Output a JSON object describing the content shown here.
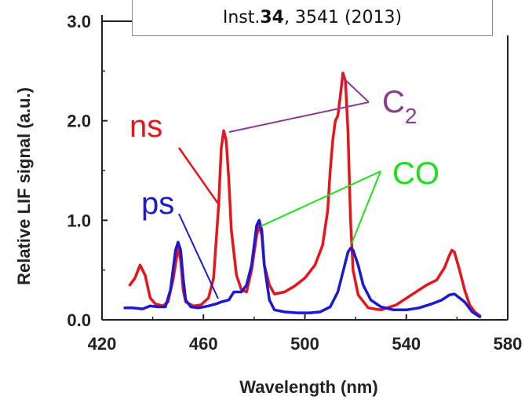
{
  "citation": {
    "prefix": "Inst. ",
    "volume": "34",
    "suffix": ", 3541 (2013)"
  },
  "chart_data": {
    "type": "line",
    "xlabel": "Wavelength (nm)",
    "ylabel": "Relative LIF signal (a.u.)",
    "xlim": [
      420,
      580
    ],
    "ylim": [
      0,
      3.0
    ],
    "x_ticks": [
      "420",
      "460",
      "500",
      "540",
      "580"
    ],
    "y_ticks": [
      "0.0",
      "1.0",
      "2.0",
      "3.0"
    ],
    "series": [
      {
        "name": "ns",
        "color": "#e8141b",
        "points": [
          [
            431,
            0.35
          ],
          [
            433,
            0.42
          ],
          [
            435,
            0.55
          ],
          [
            437,
            0.45
          ],
          [
            439,
            0.22
          ],
          [
            441,
            0.16
          ],
          [
            444,
            0.14
          ],
          [
            446,
            0.18
          ],
          [
            448,
            0.4
          ],
          [
            450,
            0.72
          ],
          [
            451,
            0.6
          ],
          [
            452,
            0.3
          ],
          [
            453,
            0.18
          ],
          [
            456,
            0.14
          ],
          [
            459,
            0.15
          ],
          [
            462,
            0.22
          ],
          [
            464,
            0.42
          ],
          [
            466,
            1.15
          ],
          [
            467,
            1.72
          ],
          [
            468,
            1.9
          ],
          [
            469,
            1.8
          ],
          [
            470,
            1.4
          ],
          [
            471,
            0.9
          ],
          [
            473,
            0.45
          ],
          [
            475,
            0.3
          ],
          [
            477,
            0.28
          ],
          [
            479,
            0.5
          ],
          [
            481,
            0.85
          ],
          [
            482,
            0.95
          ],
          [
            483,
            0.85
          ],
          [
            484,
            0.55
          ],
          [
            486,
            0.35
          ],
          [
            488,
            0.26
          ],
          [
            492,
            0.28
          ],
          [
            496,
            0.34
          ],
          [
            500,
            0.42
          ],
          [
            504,
            0.55
          ],
          [
            507,
            0.75
          ],
          [
            509,
            1.1
          ],
          [
            510,
            1.5
          ],
          [
            511,
            1.8
          ],
          [
            512,
            2.0
          ],
          [
            513,
            2.05
          ],
          [
            514,
            2.25
          ],
          [
            515,
            2.48
          ],
          [
            516,
            2.4
          ],
          [
            517,
            1.9
          ],
          [
            518,
            1.0
          ],
          [
            519,
            0.5
          ],
          [
            521,
            0.25
          ],
          [
            525,
            0.12
          ],
          [
            530,
            0.1
          ],
          [
            536,
            0.15
          ],
          [
            542,
            0.25
          ],
          [
            548,
            0.35
          ],
          [
            552,
            0.4
          ],
          [
            555,
            0.52
          ],
          [
            557,
            0.65
          ],
          [
            558,
            0.7
          ],
          [
            559,
            0.68
          ],
          [
            561,
            0.5
          ],
          [
            563,
            0.3
          ],
          [
            565,
            0.15
          ],
          [
            567,
            0.08
          ],
          [
            569,
            0.04
          ]
        ]
      },
      {
        "name": "ps",
        "color": "#1a1ad6",
        "points": [
          [
            429,
            0.12
          ],
          [
            432,
            0.12
          ],
          [
            436,
            0.11
          ],
          [
            439,
            0.14
          ],
          [
            442,
            0.13
          ],
          [
            445,
            0.13
          ],
          [
            447,
            0.3
          ],
          [
            449,
            0.7
          ],
          [
            450,
            0.78
          ],
          [
            451,
            0.7
          ],
          [
            452,
            0.42
          ],
          [
            453,
            0.2
          ],
          [
            455,
            0.13
          ],
          [
            458,
            0.12
          ],
          [
            462,
            0.14
          ],
          [
            465,
            0.16
          ],
          [
            467,
            0.18
          ],
          [
            470,
            0.2
          ],
          [
            472,
            0.28
          ],
          [
            475,
            0.28
          ],
          [
            477,
            0.35
          ],
          [
            479,
            0.55
          ],
          [
            481,
            0.95
          ],
          [
            482,
            1.0
          ],
          [
            483,
            0.9
          ],
          [
            484,
            0.55
          ],
          [
            486,
            0.2
          ],
          [
            488,
            0.1
          ],
          [
            492,
            0.08
          ],
          [
            497,
            0.07
          ],
          [
            502,
            0.07
          ],
          [
            506,
            0.08
          ],
          [
            510,
            0.13
          ],
          [
            513,
            0.28
          ],
          [
            515,
            0.48
          ],
          [
            517,
            0.68
          ],
          [
            518,
            0.72
          ],
          [
            519,
            0.7
          ],
          [
            521,
            0.55
          ],
          [
            523,
            0.35
          ],
          [
            526,
            0.2
          ],
          [
            530,
            0.13
          ],
          [
            535,
            0.1
          ],
          [
            540,
            0.1
          ],
          [
            545,
            0.12
          ],
          [
            550,
            0.16
          ],
          [
            554,
            0.2
          ],
          [
            557,
            0.25
          ],
          [
            559,
            0.26
          ],
          [
            561,
            0.22
          ],
          [
            563,
            0.18
          ],
          [
            566,
            0.08
          ],
          [
            569,
            0.03
          ]
        ]
      }
    ],
    "annotations": [
      {
        "text": "ns",
        "color": "#e8141b"
      },
      {
        "text": "ps",
        "color": "#1a1ad6"
      },
      {
        "text": "C",
        "sub": "2",
        "color": "#8b3a8f"
      },
      {
        "text": "CO",
        "color": "#1de01d"
      }
    ]
  }
}
